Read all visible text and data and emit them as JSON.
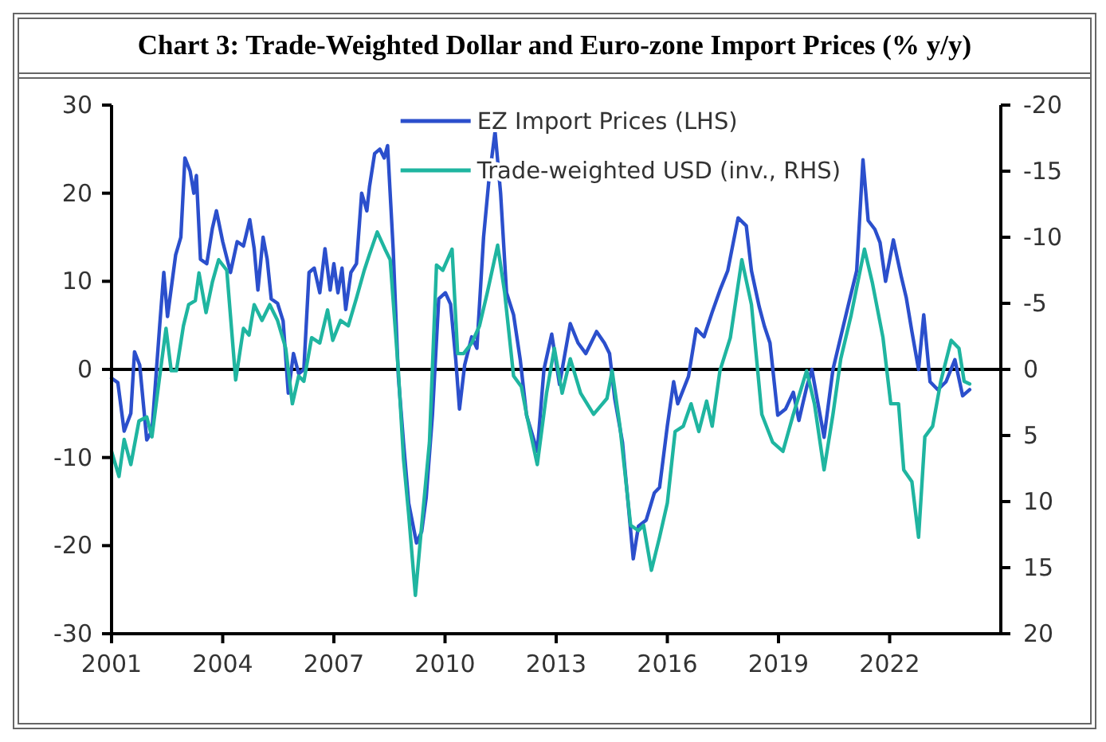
{
  "chart_data": {
    "type": "line",
    "title": "Chart 3: Trade-Weighted Dollar and Euro-zone Import Prices (% y/y)",
    "xlim": [
      2001,
      2025
    ],
    "xticks": [
      2001,
      2004,
      2007,
      2010,
      2013,
      2016,
      2019,
      2022
    ],
    "ylim": [
      -30,
      30
    ],
    "yticks": [
      -30,
      -20,
      -10,
      0,
      10,
      20,
      30
    ],
    "y2lim": [
      20,
      -20
    ],
    "y2ticks": [
      20,
      15,
      10,
      5,
      0,
      -5,
      -10,
      -15,
      -20
    ],
    "legend": "top",
    "grid": false,
    "marker": "none",
    "line_style": "solid",
    "ref_lines": [
      {
        "axis": "y",
        "value": 0,
        "color": "#000000"
      }
    ],
    "series": [
      {
        "name": "EZ Import Prices (LHS)",
        "color": "#2b4fcc",
        "x": [
          2001.0,
          2001.17,
          2001.34,
          2001.52,
          2001.62,
          2001.76,
          2001.95,
          2002.09,
          2002.3,
          2002.41,
          2002.51,
          2002.73,
          2002.87,
          2002.98,
          2003.12,
          2003.22,
          2003.29,
          2003.4,
          2003.57,
          2003.72,
          2003.83,
          2004.0,
          2004.21,
          2004.39,
          2004.56,
          2004.73,
          2004.85,
          2004.95,
          2005.09,
          2005.2,
          2005.31,
          2005.48,
          2005.63,
          2005.77,
          2005.91,
          2006.05,
          2006.19,
          2006.33,
          2006.47,
          2006.62,
          2006.76,
          2006.9,
          2007.0,
          2007.11,
          2007.22,
          2007.32,
          2007.46,
          2007.61,
          2007.75,
          2007.89,
          2007.96,
          2008.1,
          2008.24,
          2008.36,
          2008.45,
          2008.6,
          2008.74,
          2008.88,
          2009.02,
          2009.23,
          2009.37,
          2009.49,
          2009.66,
          2009.83,
          2010.01,
          2010.15,
          2010.29,
          2010.39,
          2010.53,
          2010.72,
          2010.86,
          2011.04,
          2011.18,
          2011.35,
          2011.5,
          2011.66,
          2011.85,
          2012.03,
          2012.2,
          2012.49,
          2012.67,
          2012.88,
          2013.09,
          2013.38,
          2013.59,
          2013.8,
          2014.09,
          2014.3,
          2014.44,
          2014.58,
          2014.79,
          2015.08,
          2015.22,
          2015.43,
          2015.65,
          2015.79,
          2016.0,
          2016.17,
          2016.28,
          2016.57,
          2016.78,
          2016.99,
          2017.21,
          2017.42,
          2017.63,
          2017.91,
          2018.13,
          2018.27,
          2018.48,
          2018.62,
          2018.77,
          2018.98,
          2019.19,
          2019.4,
          2019.55,
          2019.76,
          2019.9,
          2020.23,
          2020.47,
          2020.68,
          2020.89,
          2021.11,
          2021.28,
          2021.42,
          2021.6,
          2021.74,
          2021.89,
          2022.1,
          2022.31,
          2022.45,
          2022.6,
          2022.78,
          2022.92,
          2023.09,
          2023.3,
          2023.52,
          2023.76,
          2023.97,
          2024.16
        ],
        "values": [
          -1,
          -1.5,
          -7,
          -5,
          2,
          0.5,
          -8,
          -7,
          5,
          11,
          6,
          13,
          15,
          24,
          22.5,
          20,
          22,
          12.5,
          12,
          16,
          18,
          14.5,
          11,
          14.5,
          14,
          17,
          13.7,
          9,
          15,
          12.5,
          8,
          7.5,
          5.5,
          -2.7,
          1.8,
          -0.5,
          0,
          11,
          11.5,
          8.7,
          13.7,
          9,
          12,
          8.7,
          11.5,
          6.8,
          11,
          12,
          20,
          18,
          20.7,
          24.5,
          25,
          24,
          25.4,
          13.7,
          -0.8,
          -8.3,
          -15.2,
          -19.7,
          -18.4,
          -14.6,
          -5.2,
          8,
          8.7,
          7.4,
          1.1,
          -4.5,
          0.5,
          3.7,
          2.4,
          15,
          21.3,
          27,
          20,
          8.7,
          6.2,
          1.1,
          -5.2,
          -9.3,
          0,
          4,
          -1.7,
          5.2,
          3,
          1.8,
          4.3,
          3,
          1.8,
          -3.3,
          -8.3,
          -21.5,
          -17.8,
          -17.1,
          -14,
          -13.4,
          -6.4,
          -1.4,
          -3.9,
          -0.8,
          4.6,
          3.7,
          6.5,
          9,
          11.2,
          17.2,
          16.3,
          11.2,
          7.1,
          4.9,
          3,
          -5.2,
          -4.5,
          -2.6,
          -5.8,
          -2,
          0,
          -7.7,
          0,
          3.7,
          7.4,
          11.2,
          23.8,
          16.9,
          15.9,
          14.4,
          10,
          14.7,
          10.6,
          8.1,
          4.3,
          0,
          6.2,
          -1.4,
          -2.3,
          -1.4,
          1.1,
          -3,
          -2.3
        ]
      },
      {
        "name": "Trade-weighted USD (inv., RHS)",
        "color": "#1fb5a0",
        "axis": "y2",
        "x": [
          2001.0,
          2001.2,
          2001.34,
          2001.52,
          2001.74,
          2001.95,
          2002.09,
          2002.3,
          2002.47,
          2002.61,
          2002.75,
          2002.94,
          2003.08,
          2003.26,
          2003.36,
          2003.55,
          2003.72,
          2003.89,
          2004.11,
          2004.35,
          2004.56,
          2004.71,
          2004.85,
          2005.06,
          2005.27,
          2005.48,
          2005.7,
          2005.88,
          2006.05,
          2006.19,
          2006.4,
          2006.62,
          2006.83,
          2006.97,
          2007.18,
          2007.39,
          2007.61,
          2007.82,
          2007.96,
          2008.17,
          2008.38,
          2008.52,
          2008.74,
          2008.88,
          2009.02,
          2009.2,
          2009.37,
          2009.58,
          2009.77,
          2009.94,
          2010.19,
          2010.34,
          2010.5,
          2010.72,
          2010.93,
          2011.14,
          2011.42,
          2011.61,
          2011.85,
          2012.06,
          2012.2,
          2012.49,
          2012.74,
          2012.95,
          2013.16,
          2013.38,
          2013.66,
          2014.01,
          2014.37,
          2014.51,
          2014.72,
          2015.01,
          2015.22,
          2015.36,
          2015.57,
          2015.79,
          2016.0,
          2016.21,
          2016.43,
          2016.64,
          2016.85,
          2017.06,
          2017.21,
          2017.42,
          2017.7,
          2018.01,
          2018.27,
          2018.55,
          2018.84,
          2019.12,
          2019.4,
          2019.76,
          2019.97,
          2020.23,
          2020.47,
          2020.68,
          2020.96,
          2021.32,
          2021.53,
          2021.82,
          2022.03,
          2022.24,
          2022.38,
          2022.6,
          2022.78,
          2022.95,
          2023.16,
          2023.38,
          2023.66,
          2023.87,
          2024.01,
          2024.16
        ],
        "values": [
          6.2,
          8.1,
          5.3,
          7.2,
          3.9,
          3.6,
          5.1,
          0.5,
          -3.1,
          0.1,
          0.1,
          -3.3,
          -4.9,
          -5.2,
          -7.3,
          -4.3,
          -6.6,
          -8.3,
          -7.5,
          0.8,
          -3.1,
          -2.6,
          -4.9,
          -3.7,
          -4.9,
          -3.7,
          -1.6,
          2.6,
          0.5,
          0.9,
          -2.4,
          -2,
          -4.5,
          -2.2,
          -3.7,
          -3.3,
          -5.4,
          -7.5,
          -8.7,
          -10.4,
          -9.1,
          -8.3,
          0.1,
          6.8,
          11,
          17.1,
          11.8,
          5.5,
          -7.9,
          -7.5,
          -9.1,
          -1.2,
          -1.2,
          -2,
          -3.3,
          -5.8,
          -9.4,
          -5.8,
          0.5,
          1.3,
          3.4,
          7.2,
          1.8,
          -1.6,
          1.8,
          -0.8,
          1.8,
          3.4,
          2.2,
          0.1,
          4.3,
          11.8,
          12.2,
          11.8,
          15.2,
          12.7,
          10.1,
          4.7,
          4.3,
          2.6,
          4.7,
          2.4,
          4.3,
          0.1,
          -2.4,
          -8.3,
          -4.9,
          3.4,
          5.5,
          6.2,
          3.4,
          0.1,
          2.6,
          7.6,
          3.4,
          -0.8,
          -4.1,
          -9.1,
          -6.6,
          -2.4,
          2.6,
          2.6,
          7.6,
          8.5,
          12.7,
          5.1,
          4.3,
          0.9,
          -2.2,
          -1.6,
          0.9,
          1.1
        ]
      }
    ]
  }
}
